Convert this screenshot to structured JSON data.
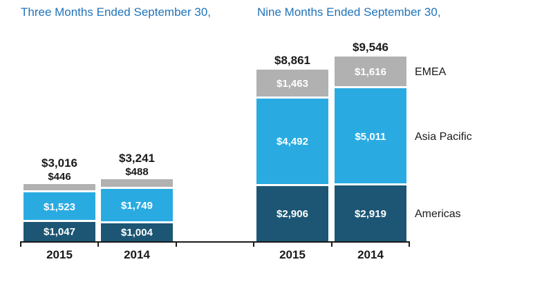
{
  "chart_data": {
    "type": "bar",
    "stacked": true,
    "legend_position": "right",
    "groups": [
      {
        "title": "Three Months Ended September 30,",
        "bars": [
          {
            "category": "2015",
            "total": 3016,
            "total_label": "$3,016",
            "segments": [
              {
                "name": "Americas",
                "value": 1047,
                "label": "$1,047",
                "label_inside": true
              },
              {
                "name": "Asia Pacific",
                "value": 1523,
                "label": "$1,523",
                "label_inside": true
              },
              {
                "name": "EMEA",
                "value": 446,
                "label": "$446",
                "label_inside": false
              }
            ]
          },
          {
            "category": "2014",
            "total": 3241,
            "total_label": "$3,241",
            "segments": [
              {
                "name": "Americas",
                "value": 1004,
                "label": "$1,004",
                "label_inside": true
              },
              {
                "name": "Asia Pacific",
                "value": 1749,
                "label": "$1,749",
                "label_inside": true
              },
              {
                "name": "EMEA",
                "value": 488,
                "label": "$488",
                "label_inside": false
              }
            ]
          }
        ]
      },
      {
        "title": "Nine Months Ended September 30,",
        "bars": [
          {
            "category": "2015",
            "total": 8861,
            "total_label": "$8,861",
            "segments": [
              {
                "name": "Americas",
                "value": 2906,
                "label": "$2,906",
                "label_inside": true
              },
              {
                "name": "Asia Pacific",
                "value": 4492,
                "label": "$4,492",
                "label_inside": true
              },
              {
                "name": "EMEA",
                "value": 1463,
                "label": "$1,463",
                "label_inside": true
              }
            ]
          },
          {
            "category": "2014",
            "total": 9546,
            "total_label": "$9,546",
            "segments": [
              {
                "name": "Americas",
                "value": 2919,
                "label": "$2,919",
                "label_inside": true
              },
              {
                "name": "Asia Pacific",
                "value": 5011,
                "label": "$5,011",
                "label_inside": true
              },
              {
                "name": "EMEA",
                "value": 1616,
                "label": "$1,616",
                "label_inside": true
              }
            ]
          }
        ]
      }
    ],
    "legend": [
      {
        "label": "EMEA",
        "series": "EMEA"
      },
      {
        "label": "Asia Pacific",
        "series": "Asia Pacific"
      },
      {
        "label": "Americas",
        "series": "Americas"
      }
    ],
    "colors": {
      "Americas": "#1c5674",
      "Asia Pacific": "#29abe2",
      "EMEA": "#b1b1b1",
      "title": "#2173b9",
      "text": "#1a1a1a",
      "inside_label": "#ffffff"
    }
  }
}
